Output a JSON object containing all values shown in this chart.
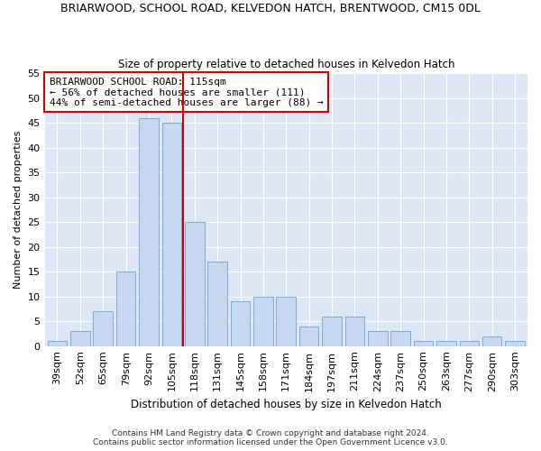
{
  "title": "BRIARWOOD, SCHOOL ROAD, KELVEDON HATCH, BRENTWOOD, CM15 0DL",
  "subtitle": "Size of property relative to detached houses in Kelvedon Hatch",
  "xlabel": "Distribution of detached houses by size in Kelvedon Hatch",
  "ylabel": "Number of detached properties",
  "categories": [
    "39sqm",
    "52sqm",
    "65sqm",
    "79sqm",
    "92sqm",
    "105sqm",
    "118sqm",
    "131sqm",
    "145sqm",
    "158sqm",
    "171sqm",
    "184sqm",
    "197sqm",
    "211sqm",
    "224sqm",
    "237sqm",
    "250sqm",
    "263sqm",
    "277sqm",
    "290sqm",
    "303sqm"
  ],
  "values": [
    1,
    3,
    7,
    15,
    46,
    45,
    25,
    17,
    9,
    10,
    10,
    4,
    6,
    6,
    3,
    3,
    1,
    1,
    1,
    2,
    1
  ],
  "bar_color": "#c5d8f0",
  "bar_edge_color": "#7aadd4",
  "vline_x_index": 5.5,
  "vline_color": "#cc0000",
  "annotation_text": "BRIARWOOD SCHOOL ROAD: 115sqm\n← 56% of detached houses are smaller (111)\n44% of semi-detached houses are larger (88) →",
  "annotation_box_facecolor": "#ffffff",
  "annotation_box_edgecolor": "#cc0000",
  "ylim": [
    0,
    55
  ],
  "yticks": [
    0,
    5,
    10,
    15,
    20,
    25,
    30,
    35,
    40,
    45,
    50,
    55
  ],
  "bg_color": "#dce6f5",
  "footer_line1": "Contains HM Land Registry data © Crown copyright and database right 2024.",
  "footer_line2": "Contains public sector information licensed under the Open Government Licence v3.0."
}
